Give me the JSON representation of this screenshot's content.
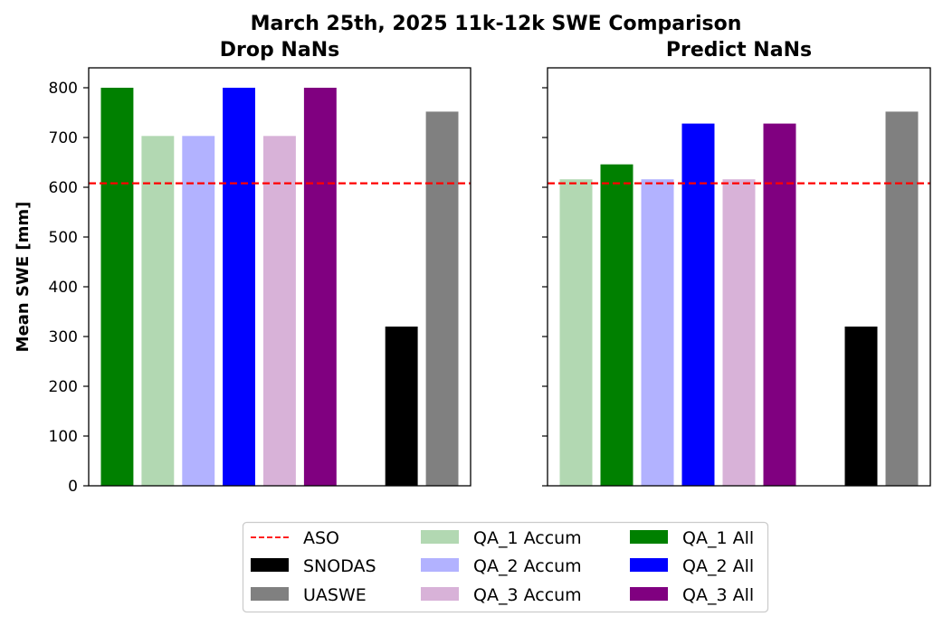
{
  "suptitle": "March 25th, 2025 11k-12k SWE Comparison",
  "chart_data": [
    {
      "type": "bar",
      "title": "Drop NaNs",
      "ylabel": "Mean SWE [mm]",
      "ylim": [
        0,
        840
      ],
      "yticks": [
        0,
        100,
        200,
        300,
        400,
        500,
        600,
        700,
        800
      ],
      "bars": [
        {
          "series": "QA_1 All",
          "value": 800
        },
        {
          "series": "QA_1 Accum",
          "value": 703
        },
        {
          "series": "QA_2 Accum",
          "value": 703
        },
        {
          "series": "QA_2 All",
          "value": 800
        },
        {
          "series": "QA_3 Accum",
          "value": 703
        },
        {
          "series": "QA_3 All",
          "value": 800
        },
        {
          "series": "SNODAS",
          "value": 320
        },
        {
          "series": "UASWE",
          "value": 752
        }
      ],
      "reference_line": {
        "series": "ASO",
        "value": 608
      }
    },
    {
      "type": "bar",
      "title": "Predict NaNs",
      "ylabel": "",
      "ylim": [
        0,
        840
      ],
      "yticks": [
        0,
        100,
        200,
        300,
        400,
        500,
        600,
        700,
        800
      ],
      "bars": [
        {
          "series": "QA_1 Accum",
          "value": 616
        },
        {
          "series": "QA_1 All",
          "value": 646
        },
        {
          "series": "QA_2 Accum",
          "value": 616
        },
        {
          "series": "QA_2 All",
          "value": 728
        },
        {
          "series": "QA_3 Accum",
          "value": 616
        },
        {
          "series": "QA_3 All",
          "value": 728
        },
        {
          "series": "SNODAS",
          "value": 320
        },
        {
          "series": "UASWE",
          "value": 752
        }
      ],
      "reference_line": {
        "series": "ASO",
        "value": 608
      }
    }
  ],
  "colors": {
    "QA_1 All": "#008000",
    "QA_1 Accum": "#b2d8b2",
    "QA_2 All": "#0000ff",
    "QA_2 Accum": "#b2b2ff",
    "QA_3 All": "#800080",
    "QA_3 Accum": "#d8b2d8",
    "SNODAS": "#000000",
    "UASWE": "#808080",
    "ASO": "#ff0000"
  },
  "legend": {
    "location": "bottom-center",
    "columns": [
      [
        {
          "label": "ASO",
          "kind": "line"
        },
        {
          "label": "SNODAS",
          "kind": "patch"
        },
        {
          "label": "UASWE",
          "kind": "patch"
        }
      ],
      [
        {
          "label": "QA_1 Accum",
          "kind": "patch"
        },
        {
          "label": "QA_2 Accum",
          "kind": "patch"
        },
        {
          "label": "QA_3 Accum",
          "kind": "patch"
        }
      ],
      [
        {
          "label": "QA_1 All",
          "kind": "patch"
        },
        {
          "label": "QA_2 All",
          "kind": "patch"
        },
        {
          "label": "QA_3 All",
          "kind": "patch"
        }
      ]
    ]
  }
}
